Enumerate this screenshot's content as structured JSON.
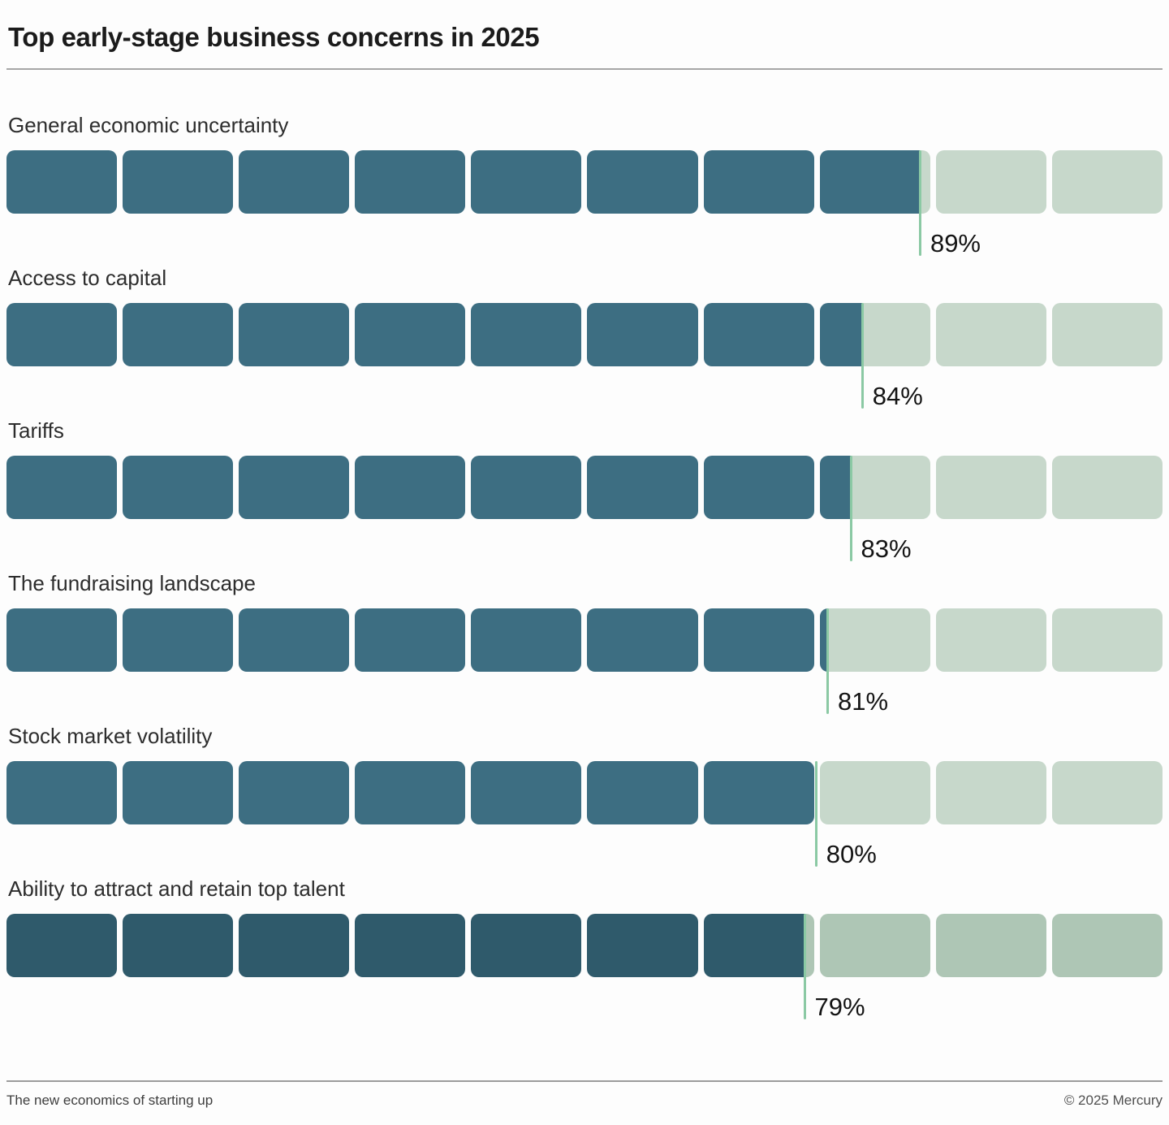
{
  "title": "Top early-stage business concerns in 2025",
  "footer": {
    "note": "The new economics of starting up",
    "credit": "© 2025 Mercury"
  },
  "colors": {
    "fill_dark": "#3d6e82",
    "fill_light": "#c7d8cb",
    "fill_dark_highlight": "#2f5a6b",
    "fill_light_highlight": "#aec6b5",
    "marker_line": "#8bc9a4"
  },
  "chart_data": {
    "type": "bar",
    "title": "Top early-stage business concerns in 2025",
    "xlabel": "",
    "ylabel": "",
    "unit": "%",
    "xlim": [
      0,
      100
    ],
    "orientation": "horizontal",
    "segments_per_bar": 10,
    "segment_value_pct": 10,
    "visual_fill_offset_pct": 10,
    "grid": false,
    "legend": false,
    "value_labels_position": "below-bar-at-marker",
    "categories": [
      "General economic uncertainty",
      "Access to capital",
      "Tariffs",
      "The fundraising landscape",
      "Stock market volatility",
      "Ability to attract and retain top talent"
    ],
    "values": [
      89,
      84,
      83,
      81,
      80,
      79
    ]
  },
  "rows": [
    {
      "label": "General economic uncertainty",
      "value": 89,
      "value_label": "89%",
      "highlight": false
    },
    {
      "label": "Access to capital",
      "value": 84,
      "value_label": "84%",
      "highlight": false
    },
    {
      "label": "Tariffs",
      "value": 83,
      "value_label": "83%",
      "highlight": false
    },
    {
      "label": "The fundraising landscape",
      "value": 81,
      "value_label": "81%",
      "highlight": false
    },
    {
      "label": "Stock market volatility",
      "value": 80,
      "value_label": "80%",
      "highlight": false
    },
    {
      "label": "Ability to attract and retain top talent",
      "value": 79,
      "value_label": "79%",
      "highlight": true
    }
  ]
}
